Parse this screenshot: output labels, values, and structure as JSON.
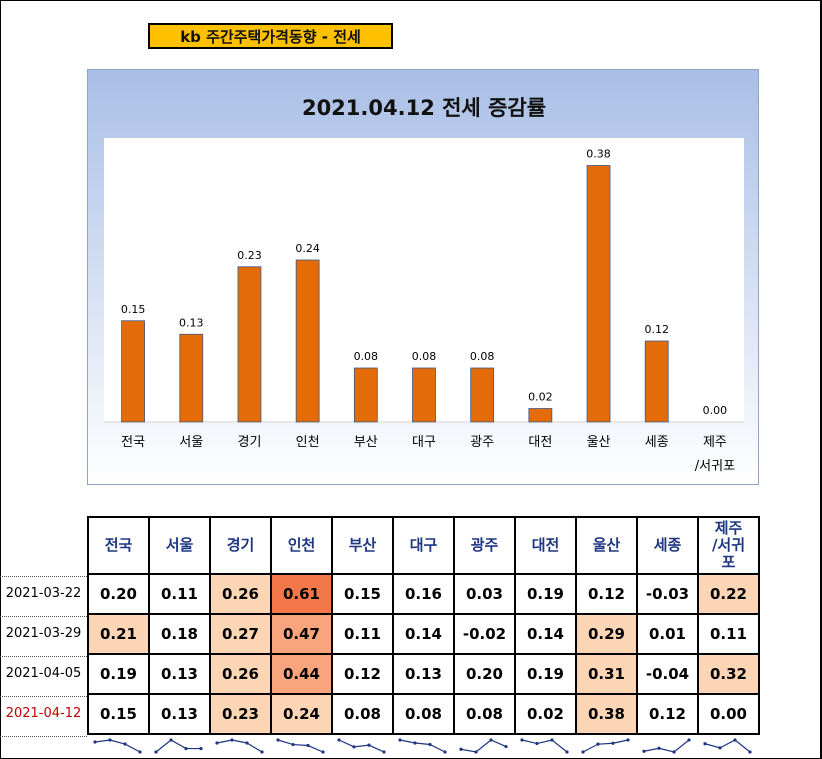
{
  "header": {
    "badge": "kb 주간주택가격동향 - 전세"
  },
  "colors": {
    "bar": "#e36c09",
    "badge": "#ffc000",
    "header_text": "#1f3680",
    "latest_date": "#c00000"
  },
  "chart_data": {
    "type": "bar",
    "title": "2021.04.12 전세 증감률",
    "categories": [
      "전국",
      "서울",
      "경기",
      "인천",
      "부산",
      "대구",
      "광주",
      "대전",
      "울산",
      "세종",
      "제주/서귀포"
    ],
    "category_lines": [
      [
        "전국"
      ],
      [
        "서울"
      ],
      [
        "경기"
      ],
      [
        "인천"
      ],
      [
        "부산"
      ],
      [
        "대구"
      ],
      [
        "광주"
      ],
      [
        "대전"
      ],
      [
        "울산"
      ],
      [
        "세종"
      ],
      [
        "제주",
        "/서귀포"
      ]
    ],
    "values": [
      0.15,
      0.13,
      0.23,
      0.24,
      0.08,
      0.08,
      0.08,
      0.02,
      0.38,
      0.12,
      0.0
    ],
    "value_labels": [
      "0.15",
      "0.13",
      "0.23",
      "0.24",
      "0.08",
      "0.08",
      "0.08",
      "0.02",
      "0.38",
      "0.12",
      "0.00"
    ],
    "ylim": [
      0,
      0.4
    ],
    "grid": false,
    "legend": "none"
  },
  "table": {
    "headers": [
      [
        "전국"
      ],
      [
        "서울"
      ],
      [
        "경기"
      ],
      [
        "인천"
      ],
      [
        "부산"
      ],
      [
        "대구"
      ],
      [
        "광주"
      ],
      [
        "대전"
      ],
      [
        "울산"
      ],
      [
        "세종"
      ],
      [
        "제주",
        "/서귀",
        "포"
      ]
    ],
    "rows": [
      {
        "date": "2021-03-22",
        "values": [
          "0.20",
          "0.11",
          "0.26",
          "0.61",
          "0.15",
          "0.16",
          "0.03",
          "0.19",
          "0.12",
          "-0.03",
          "0.22"
        ],
        "fills": [
          "",
          "",
          "#fcd5b4",
          "#f4774a",
          "",
          "",
          "",
          "",
          "",
          "",
          "#fcd5b4"
        ]
      },
      {
        "date": "2021-03-29",
        "values": [
          "0.21",
          "0.18",
          "0.27",
          "0.47",
          "0.11",
          "0.14",
          "-0.02",
          "0.14",
          "0.29",
          "0.01",
          "0.11"
        ],
        "fills": [
          "#fcd5b4",
          "",
          "#fcd5b4",
          "#f8a47c",
          "",
          "",
          "",
          "",
          "#fcd5b4",
          "",
          ""
        ]
      },
      {
        "date": "2021-04-05",
        "values": [
          "0.19",
          "0.13",
          "0.26",
          "0.44",
          "0.12",
          "0.13",
          "0.20",
          "0.19",
          "0.31",
          "-0.04",
          "0.32"
        ],
        "fills": [
          "",
          "",
          "#fcd5b4",
          "#f8a47c",
          "",
          "",
          "",
          "",
          "#fcd5b4",
          "",
          "#fcd5b4"
        ]
      },
      {
        "date": "2021-04-12",
        "latest": true,
        "values": [
          "0.15",
          "0.13",
          "0.23",
          "0.24",
          "0.08",
          "0.08",
          "0.08",
          "0.02",
          "0.38",
          "0.12",
          "0.00"
        ],
        "fills": [
          "",
          "",
          "#fcd5b4",
          "#fcd5b4",
          "",
          "",
          "",
          "",
          "#fcd5b4",
          "",
          ""
        ]
      }
    ]
  }
}
